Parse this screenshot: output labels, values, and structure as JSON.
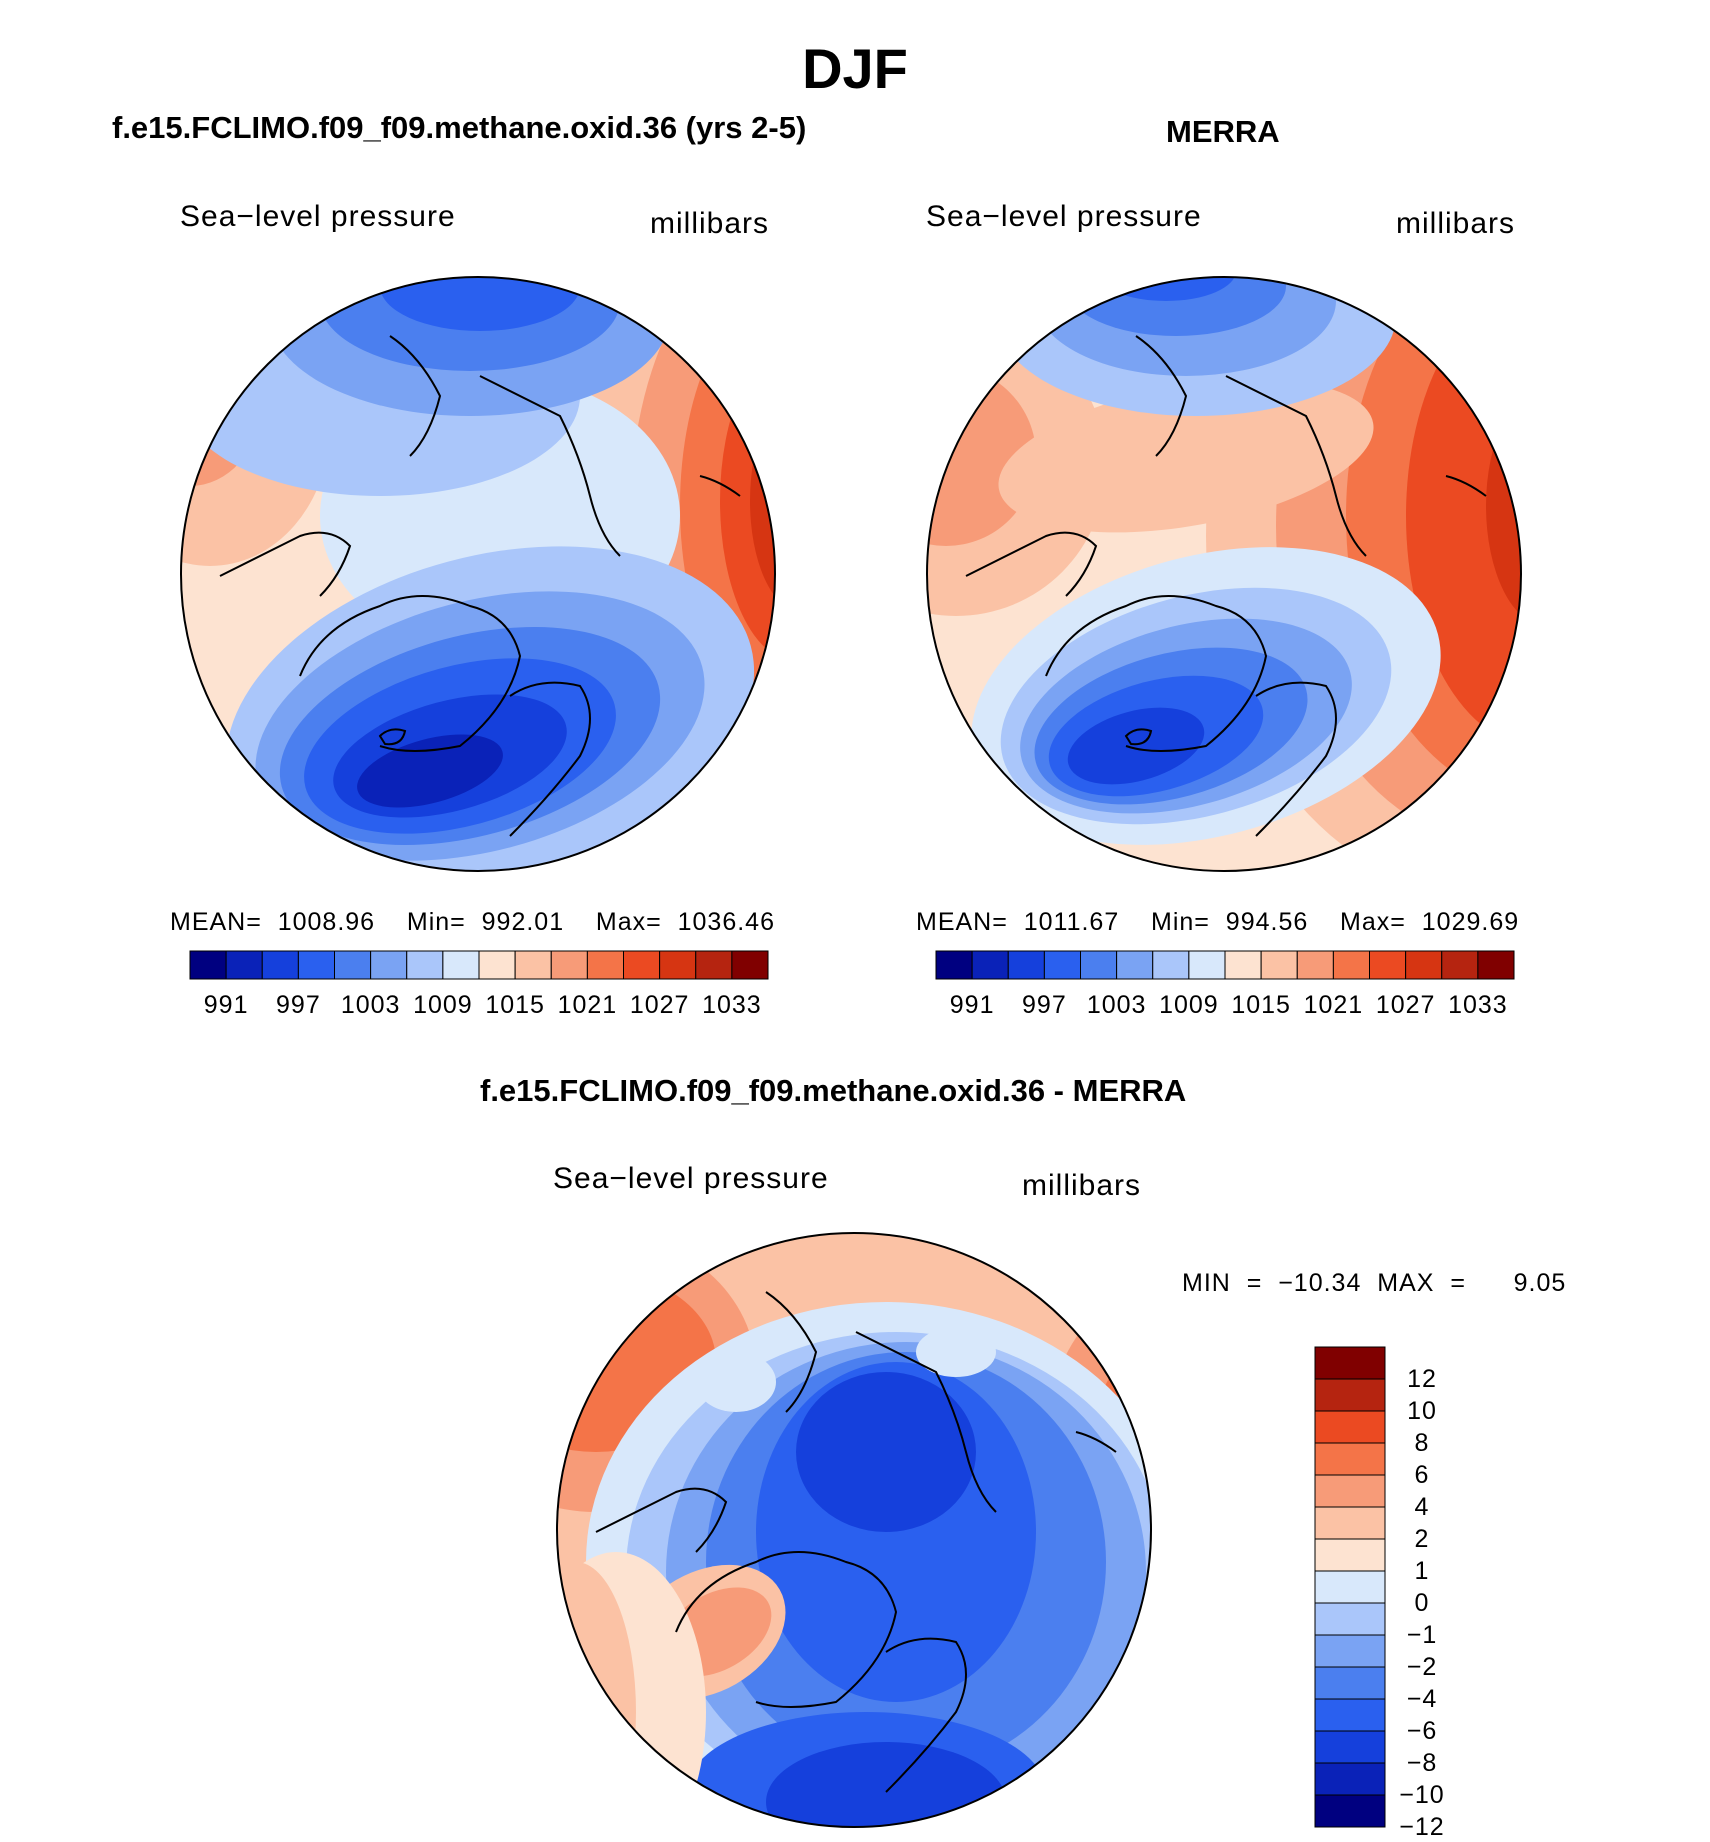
{
  "main_title": "DJF",
  "palette": {
    "abs": [
      "#000080",
      "#0a22b8",
      "#1540dc",
      "#2a60ef",
      "#4b7fef",
      "#7aa3f3",
      "#aac6fa",
      "#d8e8fb",
      "#fde3d1",
      "#fbc2a5",
      "#f79b78",
      "#f47448",
      "#eb4a22",
      "#d63512",
      "#b52410",
      "#800000"
    ],
    "diff": [
      "#000080",
      "#0a22b8",
      "#1540dc",
      "#2a60ef",
      "#4b7fef",
      "#7aa3f3",
      "#aac6fa",
      "#d8e8fb",
      "#fde3d1",
      "#fbc2a5",
      "#f79b78",
      "#f47448",
      "#eb4a22",
      "#b52410",
      "#800000"
    ]
  },
  "panels": {
    "model": {
      "title": "f.e15.FCLIMO.f09_f09.methane.oxid.36 (yrs 2-5)",
      "variable": "Sea−level pressure",
      "units": "millibars",
      "stats": "MEAN=  1008.96    Min=  992.01    Max=  1036.46",
      "colorbar_ticks": [
        "991",
        "997",
        "1003",
        "1009",
        "1015",
        "1021",
        "1027",
        "1033"
      ]
    },
    "obs": {
      "title": "MERRA",
      "variable": "Sea−level pressure",
      "units": "millibars",
      "stats": "MEAN=  1011.67    Min=  994.56    Max=  1029.69",
      "colorbar_ticks": [
        "991",
        "997",
        "1003",
        "1009",
        "1015",
        "1021",
        "1027",
        "1033"
      ]
    },
    "diff": {
      "title": "f.e15.FCLIMO.f09_f09.methane.oxid.36 - MERRA",
      "variable": "Sea−level pressure",
      "units": "millibars",
      "stats": "MIN  =  −10.34  MAX  =      9.05",
      "colorbar_ticks": [
        "12",
        "10",
        "8",
        "6",
        "4",
        "2",
        "1",
        "0",
        "−1",
        "−2",
        "−4",
        "−6",
        "−8",
        "−10",
        "−12"
      ]
    }
  }
}
